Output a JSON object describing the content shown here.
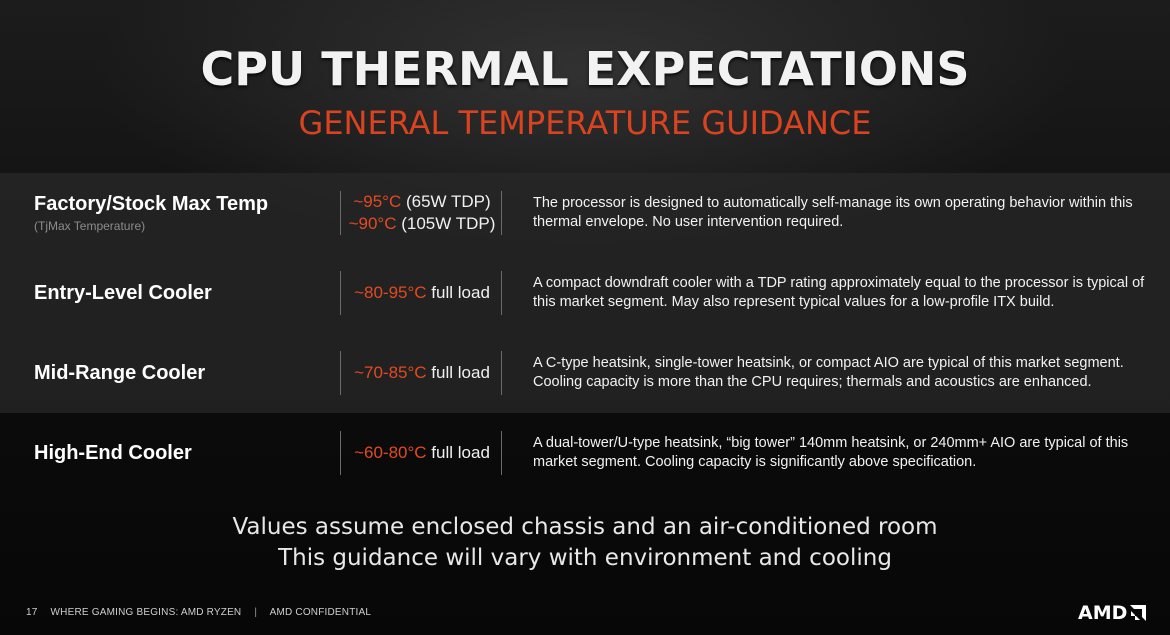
{
  "header": {
    "title": "CPU THERMAL EXPECTATIONS",
    "subtitle": "GENERAL TEMPERATURE GUIDANCE"
  },
  "rows": [
    {
      "label": "Factory/Stock Max Temp",
      "sublabel": "(TjMax Temperature)",
      "temps": [
        {
          "range": "~95°C",
          "note": " (65W TDP)"
        },
        {
          "range": "~90°C",
          "note": " (105W TDP)"
        }
      ],
      "description_lines": [
        "The processor is designed to automatically self-manage its own operating behavior within this",
        "thermal envelope. No user intervention required."
      ]
    },
    {
      "label": "Entry-Level Cooler",
      "temps": [
        {
          "range": "~80-95°C",
          "note": " full load"
        }
      ],
      "description_lines": [
        "A compact downdraft cooler with a TDP rating approximately equal to the processor is typical of",
        "this market segment. May also represent typical values for a low-profile ITX build."
      ]
    },
    {
      "label": "Mid-Range Cooler",
      "temps": [
        {
          "range": "~70-85°C",
          "note": " full load"
        }
      ],
      "description_lines": [
        "A C-type heatsink, single-tower heatsink, or compact AIO are typical of this market segment.",
        "Cooling capacity is more than the CPU requires; thermals and acoustics are enhanced."
      ]
    },
    {
      "label": "High-End Cooler",
      "temps": [
        {
          "range": "~60-80°C",
          "note": " full load"
        }
      ],
      "description_lines": [
        "A dual-tower/U-type heatsink, “big tower” 140mm heatsink, or 240mm+ AIO are typical of this",
        "market segment. Cooling capacity is significantly above specification."
      ]
    }
  ],
  "footnotes": [
    "Values assume enclosed chassis and an air-conditioned room",
    "This guidance will vary with environment and cooling"
  ],
  "footer": {
    "page_number": "17",
    "tagline": "WHERE GAMING BEGINS:  AMD RYZEN",
    "separator": "|",
    "confidential": "AMD CONFIDENTIAL"
  },
  "logo": {
    "text": "AMD",
    "icon": "amd-arrow-icon"
  },
  "colors": {
    "accent": "#e24a22",
    "subtitle": "#d9431f",
    "row_shade": "#282828",
    "background": "#0a0a0a"
  }
}
